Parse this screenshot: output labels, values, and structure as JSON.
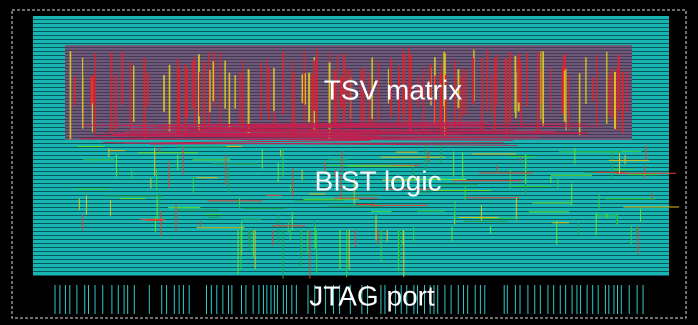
{
  "regions": [
    {
      "label": "TSV matrix"
    },
    {
      "label": "BIST logic"
    },
    {
      "label": "JTAG port"
    }
  ]
}
